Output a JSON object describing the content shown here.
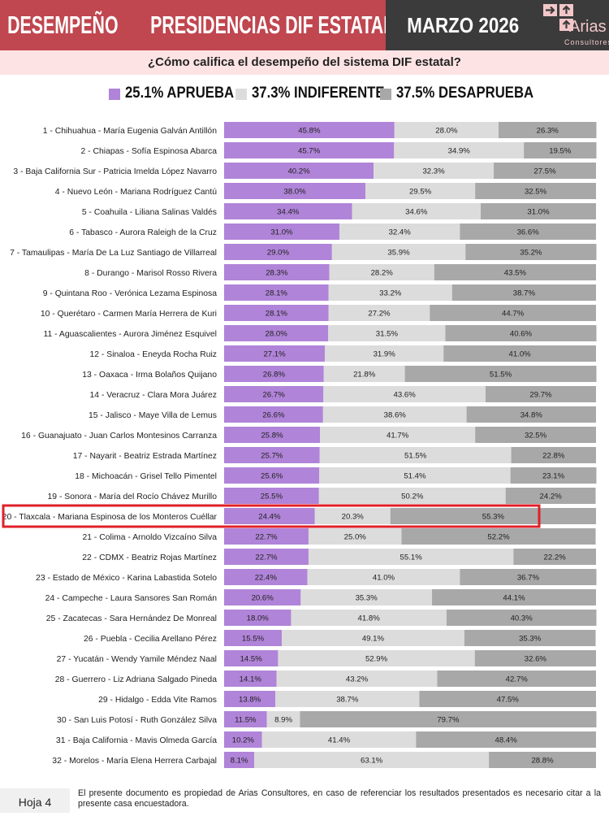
{
  "header": {
    "title_part1": "DESEMPEÑO",
    "title_part2": "PRESIDENCIAS DIF ESTATAL",
    "month": "MARZO 2026",
    "logo_word": "Arias",
    "logo_sub": "Consultores"
  },
  "question": "¿Cómo califica el desempeño del sistema DIF estatal?",
  "legend": [
    {
      "label": "25.1% APRUEBA",
      "color": "#b084d8"
    },
    {
      "label": "37.3% INDIFERENTE",
      "color": "#dcdcdc"
    },
    {
      "label": "37.5% DESAPRUEBA",
      "color": "#a8a8a8"
    }
  ],
  "chart_data": {
    "type": "bar",
    "orientation": "horizontal",
    "stacked": true,
    "xlim": [
      0,
      100
    ],
    "highlighted_category": "20 - Tlaxcala - Mariana Espinosa de los Monteros Cuéllar",
    "highlight_color": "#e0202a",
    "categories": [
      "1 - Chihuahua - María Eugenia Galván Antillón",
      "2 - Chiapas - Sofía Espinosa Abarca",
      "3 - Baja California Sur - Patricia Imelda López Navarro",
      "4 - Nuevo León - Mariana Rodríguez Cantú",
      "5 - Coahuila - Liliana Salinas Valdés",
      "6 - Tabasco - Aurora Raleigh de la Cruz",
      "7 - Tamaulipas - María De La Luz Santiago de Villarreal",
      "8 - Durango - Marisol Rosso Rivera",
      "9 - Quintana Roo - Verónica Lezama Espinosa",
      "10 - Querétaro - Carmen María Herrera de Kuri",
      "11 - Aguascalientes - Aurora Jiménez Esquivel",
      "12 - Sinaloa - Eneyda Rocha Ruiz",
      "13 - Oaxaca - Irma Bolaños Quijano",
      "14 - Veracruz - Clara Mora Juárez",
      "15 - Jalisco - Maye Villa de Lemus",
      "16 - Guanajuato - Juan Carlos Montesinos Carranza",
      "17 - Nayarit - Beatriz Estrada Martínez",
      "18 - Michoacán - Grisel Tello Pimentel",
      "19 - Sonora - María del Rocío Chávez Murillo",
      "20 - Tlaxcala - Mariana Espinosa de los Monteros Cuéllar",
      "21 - Colima - Arnoldo Vizcaíno Silva",
      "22 - CDMX - Beatriz Rojas Martínez",
      "23 - Estado de México - Karina Labastida Sotelo",
      "24 - Campeche - Laura Sansores San Román",
      "25 - Zacatecas - Sara Hernández De Monreal",
      "26 - Puebla - Cecilia Arellano Pérez",
      "27 - Yucatán - Wendy Yamile Méndez Naal",
      "28 - Guerrero - Liz Adriana Salgado Pineda",
      "29 - Hidalgo - Edda Vite Ramos",
      "30 - San Luis Potosí - Ruth González Silva",
      "31 - Baja California - Mavis Olmeda García",
      "32 - Morelos - María Elena Herrera Carbajal"
    ],
    "series": [
      {
        "name": "APRUEBA",
        "color": "#b084d8",
        "values": [
          45.8,
          45.7,
          40.2,
          38.0,
          34.4,
          31.0,
          29.0,
          28.3,
          28.1,
          28.1,
          28.0,
          27.1,
          26.8,
          26.7,
          26.6,
          25.8,
          25.7,
          25.6,
          25.5,
          24.4,
          22.7,
          22.7,
          22.4,
          20.6,
          18.0,
          15.5,
          14.5,
          14.1,
          13.8,
          11.5,
          10.2,
          8.1
        ],
        "labels": [
          "45.8%",
          "45.7%",
          "40.2%",
          "38.0%",
          "34.4%",
          "31.0%",
          "29.0%",
          "28.3%",
          "28.1%",
          "28.1%",
          "28.0%",
          "27.1%",
          "26.8%",
          "26.7%",
          "26.6%",
          "25.8%",
          "25.7%",
          "25.6%",
          "25.5%",
          "24.4%",
          "22.7%",
          "22.7%",
          "22.4%",
          "20.6%",
          "18.0%",
          "15.5%",
          "14.5%",
          "14.1%",
          "13.8%",
          "11.5%",
          "10.2%",
          "8.1%"
        ]
      },
      {
        "name": "INDIFERENTE",
        "color": "#dcdcdc",
        "values": [
          28.0,
          34.9,
          32.3,
          29.5,
          34.6,
          32.4,
          35.9,
          28.2,
          33.2,
          27.2,
          31.5,
          31.9,
          21.8,
          43.6,
          38.6,
          41.7,
          51.5,
          51.4,
          50.2,
          20.3,
          25.0,
          55.1,
          41.0,
          35.3,
          41.8,
          49.1,
          52.9,
          43.2,
          38.7,
          8.9,
          41.4,
          63.1
        ],
        "labels": [
          "28.0%",
          "34.9%",
          "32.3%",
          "29.5%",
          "34.6%",
          "32.4%",
          "35.9%",
          "28.2%",
          "33.2%",
          "27.2%",
          "31.5%",
          "31.9%",
          "21.8%",
          "43.6%",
          "38.6%",
          "41.7%",
          "51.5%",
          "51.4%",
          "50.2%",
          "20.3%",
          "25.0%",
          "55.1%",
          "41.0%",
          "35.3%",
          "41.8%",
          "49.1%",
          "52.9%",
          "43.2%",
          "38.7%",
          "8.9%",
          "41.4%",
          "63.1%"
        ]
      },
      {
        "name": "DESAPRUEBA",
        "color": "#a8a8a8",
        "values": [
          26.3,
          19.5,
          27.5,
          32.5,
          31.0,
          36.6,
          35.2,
          43.5,
          38.7,
          44.7,
          40.6,
          41.0,
          51.5,
          29.7,
          34.8,
          32.5,
          22.8,
          23.1,
          24.2,
          55.3,
          52.2,
          22.2,
          36.7,
          44.1,
          40.3,
          35.3,
          32.6,
          42.7,
          47.5,
          79.7,
          48.4,
          28.8
        ],
        "labels": [
          "26.3%",
          "19.5%",
          "27.5%",
          "32.5%",
          "31.0%",
          "36.6%",
          "35.2%",
          "43.5%",
          "38.7%",
          "44.7%",
          "40.6%",
          "41.0%",
          "51.5%",
          "29.7%",
          "34.8%",
          "32.5%",
          "22.8%",
          "23.1%",
          "24.2%",
          "55.3%",
          "52.2%",
          "22.2%",
          "36.7%",
          "44.1%",
          "40.3%",
          "35.3%",
          "32.6%",
          "42.7%",
          "47.5%",
          "79.7%",
          "48.4%",
          "28.8%"
        ]
      }
    ]
  },
  "footer": {
    "page": "Hoja 4",
    "note": "El presente documento es propiedad de Arias Consultores, en caso de referenciar los resultados presentados es necesario citar a la presente casa encuestadora."
  }
}
